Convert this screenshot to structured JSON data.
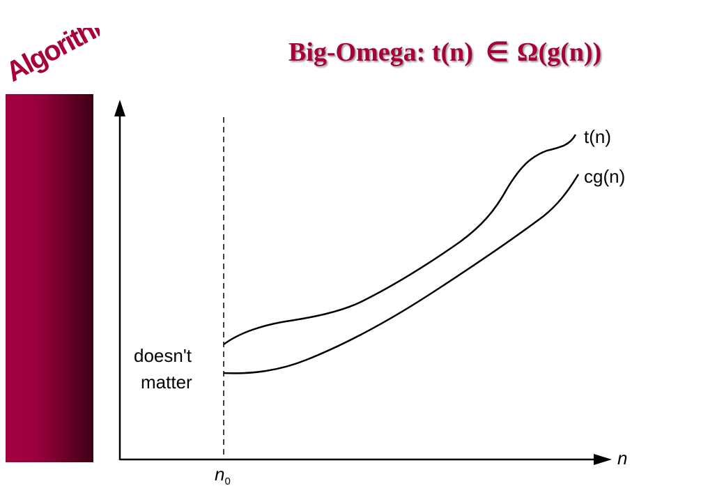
{
  "header": {
    "logo_text": "Algorithms",
    "title_prefix": "Big-Omega: t(n)",
    "title_operator": "∈",
    "title_symbol": "Ω",
    "title_suffix": "(g(n))"
  },
  "diagram": {
    "curves": [
      {
        "label": "t(n)"
      },
      {
        "label": "cg(n)"
      }
    ],
    "annotation_line1": "doesn't",
    "annotation_line2": "matter",
    "x_axis_label": "n",
    "threshold_label": "n",
    "threshold_subscript": "0"
  },
  "colors": {
    "accent": "#a8003c",
    "sidebar_light": "#a4003f",
    "sidebar_dark": "#3a0015"
  }
}
